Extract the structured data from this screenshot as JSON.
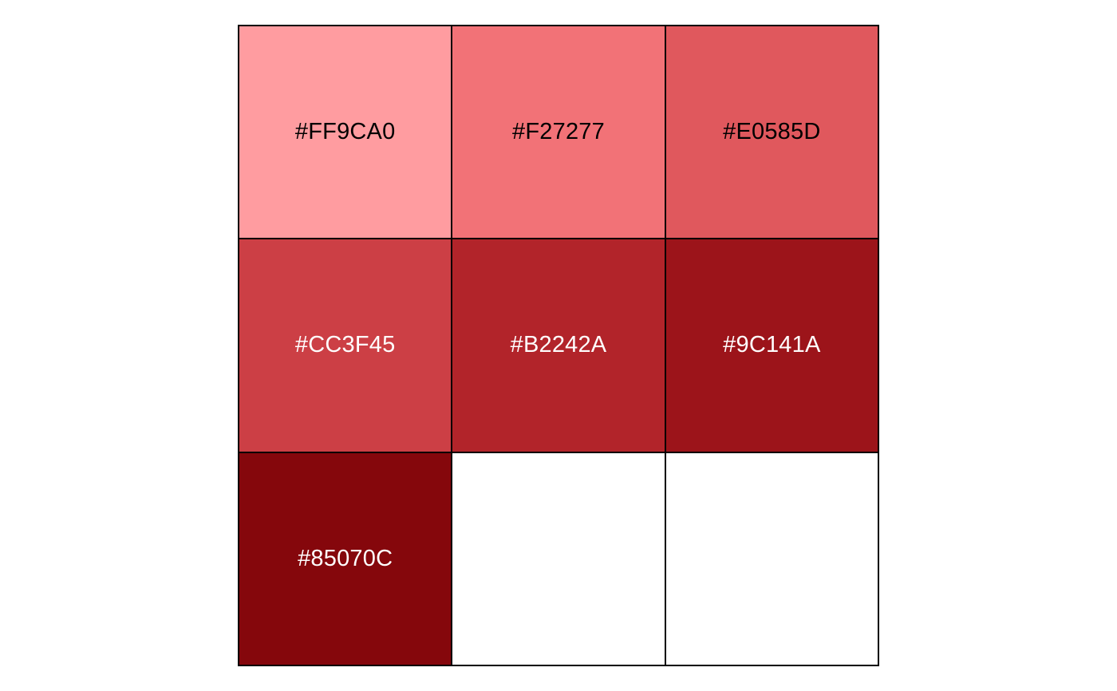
{
  "palette": {
    "swatches": [
      {
        "hex": "#FF9CA0",
        "label": "#FF9CA0",
        "text_color": "#000000"
      },
      {
        "hex": "#F27277",
        "label": "#F27277",
        "text_color": "#000000"
      },
      {
        "hex": "#E0585D",
        "label": "#E0585D",
        "text_color": "#000000"
      },
      {
        "hex": "#CC3F45",
        "label": "#CC3F45",
        "text_color": "#FFFFFF"
      },
      {
        "hex": "#B2242A",
        "label": "#B2242A",
        "text_color": "#FFFFFF"
      },
      {
        "hex": "#9C141A",
        "label": "#9C141A",
        "text_color": "#FFFFFF"
      },
      {
        "hex": "#85070C",
        "label": "#85070C",
        "text_color": "#FFFFFF"
      }
    ],
    "empty_fill": "#FFFFFF",
    "border_color": "#000000"
  }
}
